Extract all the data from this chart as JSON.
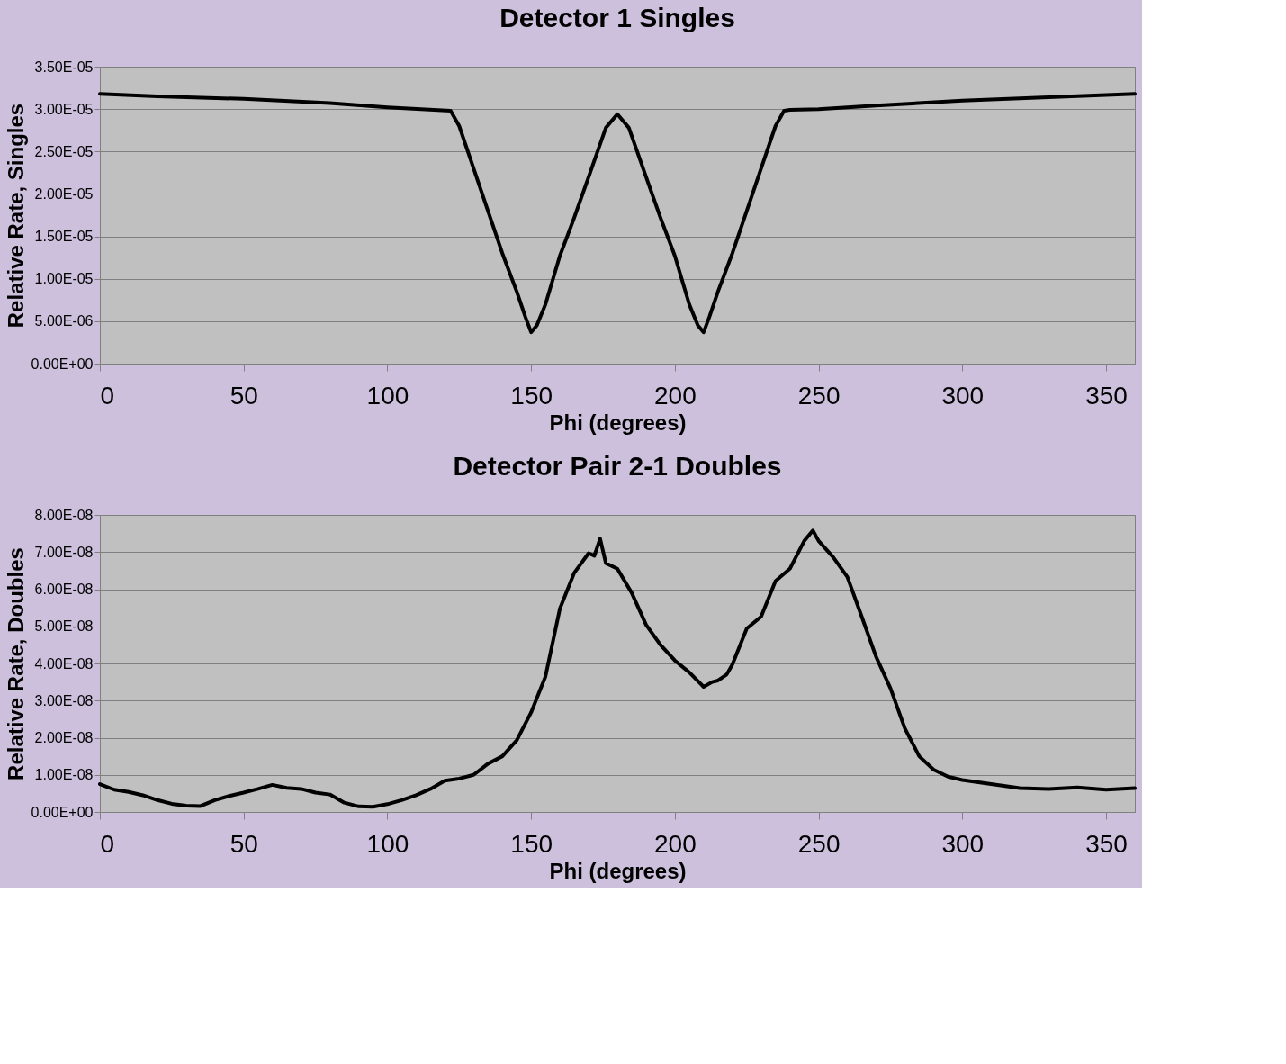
{
  "chart_data": [
    {
      "type": "line",
      "title": "Detector 1 Singles",
      "xlabel": "Phi (degrees)",
      "ylabel": "Relative Rate, Singles",
      "xlim": [
        0,
        360
      ],
      "xticks": [
        0,
        50,
        100,
        150,
        200,
        250,
        300,
        350
      ],
      "ylim": [
        0,
        3.5e-05
      ],
      "yticks": [
        {
          "value": 0,
          "label": "0.00E+00"
        },
        {
          "value": 5e-06,
          "label": "5.00E-06"
        },
        {
          "value": 1e-05,
          "label": "1.00E-05"
        },
        {
          "value": 1.5e-05,
          "label": "1.50E-05"
        },
        {
          "value": 2e-05,
          "label": "2.00E-05"
        },
        {
          "value": 2.5e-05,
          "label": "2.50E-05"
        },
        {
          "value": 3e-05,
          "label": "3.00E-05"
        },
        {
          "value": 3.5e-05,
          "label": "3.50E-05"
        }
      ],
      "grid": "y",
      "marker": "none",
      "line_style": "solid",
      "series": [
        {
          "color": "#000000",
          "x": [
            0,
            20,
            50,
            80,
            100,
            122,
            125,
            130,
            135,
            140,
            145,
            148,
            150,
            152,
            155,
            160,
            165,
            170,
            176,
            180,
            184,
            190,
            195,
            200,
            205,
            208,
            210,
            212,
            215,
            220,
            225,
            230,
            235,
            238,
            240,
            250,
            270,
            300,
            330,
            360
          ],
          "values": [
            3.18e-05,
            3.15e-05,
            3.12e-05,
            3.07e-05,
            3.02e-05,
            2.98e-05,
            2.8e-05,
            2.3e-05,
            1.8e-05,
            1.3e-05,
            8.5e-06,
            5.5e-06,
            3.7e-06,
            4.5e-06,
            7e-06,
            1.27e-05,
            1.72e-05,
            2.2e-05,
            2.78e-05,
            2.94e-05,
            2.78e-05,
            2.2e-05,
            1.72e-05,
            1.27e-05,
            7e-06,
            4.5e-06,
            3.7e-06,
            5.5e-06,
            8.5e-06,
            1.3e-05,
            1.8e-05,
            2.3e-05,
            2.8e-05,
            2.98e-05,
            2.99e-05,
            3e-05,
            3.04e-05,
            3.1e-05,
            3.14e-05,
            3.18e-05
          ]
        }
      ]
    },
    {
      "type": "line",
      "title": "Detector Pair 2-1 Doubles",
      "xlabel": "Phi (degrees)",
      "ylabel": "Relative Rate, Doubles",
      "xlim": [
        0,
        360
      ],
      "xticks": [
        0,
        50,
        100,
        150,
        200,
        250,
        300,
        350
      ],
      "ylim": [
        0,
        8e-08
      ],
      "yticks": [
        {
          "value": 0,
          "label": "0.00E+00"
        },
        {
          "value": 1e-08,
          "label": "1.00E-08"
        },
        {
          "value": 2e-08,
          "label": "2.00E-08"
        },
        {
          "value": 3e-08,
          "label": "3.00E-08"
        },
        {
          "value": 4e-08,
          "label": "4.00E-08"
        },
        {
          "value": 5e-08,
          "label": "5.00E-08"
        },
        {
          "value": 6e-08,
          "label": "6.00E-08"
        },
        {
          "value": 7e-08,
          "label": "7.00E-08"
        },
        {
          "value": 8e-08,
          "label": "8.00E-08"
        }
      ],
      "grid": "y",
      "marker": "none",
      "line_style": "solid",
      "series": [
        {
          "color": "#000000",
          "x": [
            0,
            5,
            10,
            15,
            20,
            25,
            30,
            35,
            40,
            45,
            50,
            55,
            60,
            65,
            70,
            75,
            80,
            85,
            90,
            95,
            100,
            105,
            110,
            115,
            120,
            125,
            130,
            135,
            140,
            145,
            150,
            155,
            160,
            165,
            170,
            172,
            174,
            176,
            180,
            185,
            190,
            195,
            200,
            205,
            210,
            213,
            215,
            218,
            220,
            225,
            230,
            235,
            240,
            245,
            248,
            250,
            255,
            260,
            265,
            270,
            275,
            280,
            285,
            290,
            295,
            300,
            310,
            320,
            330,
            340,
            350,
            360
          ],
          "values": [
            7.5e-09,
            6e-09,
            5.4e-09,
            4.5e-09,
            3.2e-09,
            2.2e-09,
            1.7e-09,
            1.6e-09,
            3.2e-09,
            4.3e-09,
            5.2e-09,
            6.2e-09,
            7.3e-09,
            6.5e-09,
            6.2e-09,
            5.2e-09,
            4.7e-09,
            2.5e-09,
            1.5e-09,
            1.4e-09,
            2.1e-09,
            3.2e-09,
            4.5e-09,
            6.2e-09,
            8.4e-09,
            9e-09,
            1e-08,
            1.3e-08,
            1.5e-08,
            1.93e-08,
            2.68e-08,
            3.65e-08,
            5.47e-08,
            6.44e-08,
            6.97e-08,
            6.9e-08,
            7.36e-08,
            6.7e-08,
            6.55e-08,
            5.9e-08,
            5.04e-08,
            4.5e-08,
            4.08e-08,
            3.76e-08,
            3.37e-08,
            3.5e-08,
            3.54e-08,
            3.7e-08,
            3.97e-08,
            4.94e-08,
            5.26e-08,
            6.22e-08,
            6.55e-08,
            7.3e-08,
            7.58e-08,
            7.3e-08,
            6.87e-08,
            6.33e-08,
            5.26e-08,
            4.18e-08,
            3.33e-08,
            2.25e-08,
            1.5e-08,
            1.14e-08,
            9.5e-09,
            8.6e-09,
            7.5e-09,
            6.4e-09,
            6.2e-09,
            6.6e-09,
            6e-09,
            6.4e-09
          ]
        }
      ]
    }
  ]
}
